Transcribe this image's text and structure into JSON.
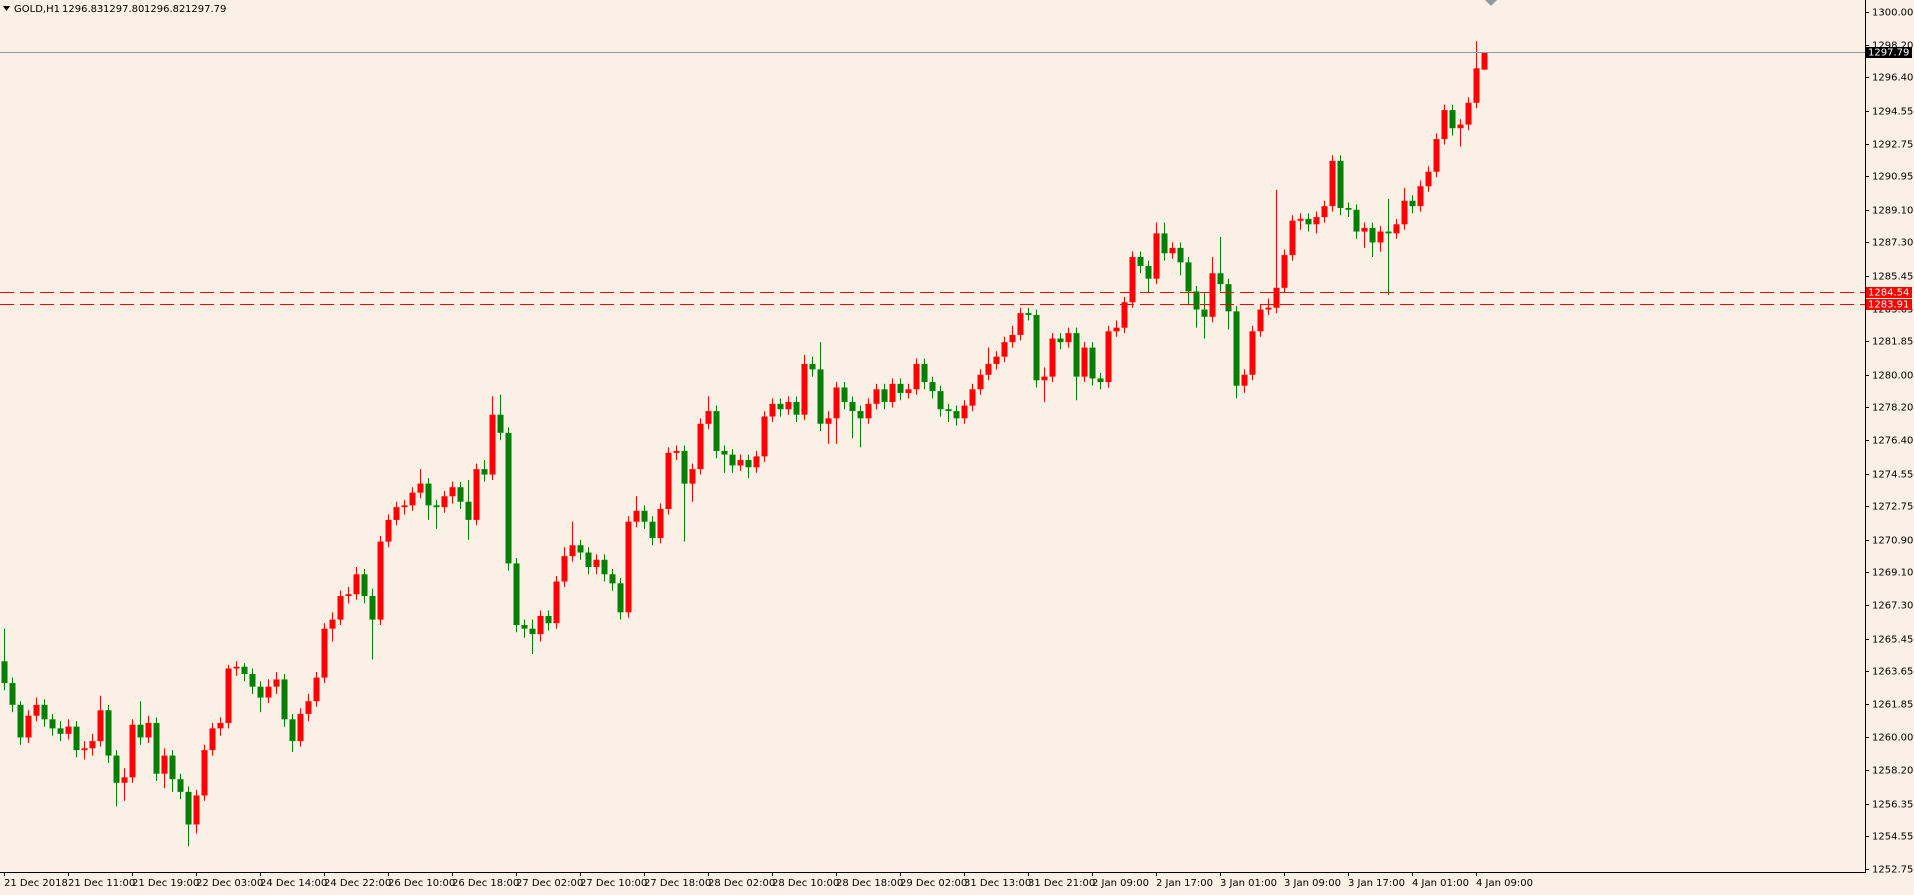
{
  "chart_data": {
    "type": "candlestick",
    "header": {
      "symbol": "GOLD,H1",
      "quote": [
        "1296.83",
        "1297.80",
        "1296.82",
        "1297.79"
      ]
    },
    "categories": [
      "21 Dec 2018",
      null,
      null,
      null,
      null,
      null,
      null,
      null,
      "21 Dec 11:00",
      null,
      null,
      null,
      null,
      null,
      null,
      null,
      "21 Dec 19:00",
      null,
      null,
      null,
      null,
      null,
      null,
      null,
      "22 Dec 03:00",
      null,
      null,
      null,
      null,
      null,
      null,
      null,
      "24 Dec 14:00",
      null,
      null,
      null,
      null,
      null,
      null,
      null,
      "24 Dec 22:00",
      null,
      null,
      null,
      null,
      null,
      null,
      null,
      "26 Dec 10:00",
      null,
      null,
      null,
      null,
      null,
      null,
      null,
      "26 Dec 18:00",
      null,
      null,
      null,
      null,
      null,
      null,
      null,
      "27 Dec 02:00",
      null,
      null,
      null,
      null,
      null,
      null,
      null,
      "27 Dec 10:00",
      null,
      null,
      null,
      null,
      null,
      null,
      null,
      "27 Dec 18:00",
      null,
      null,
      null,
      null,
      null,
      null,
      null,
      "28 Dec 02:00",
      null,
      null,
      null,
      null,
      null,
      null,
      null,
      "28 Dec 10:00",
      null,
      null,
      null,
      null,
      null,
      null,
      null,
      "28 Dec 18:00",
      null,
      null,
      null,
      null,
      null,
      null,
      null,
      "29 Dec 02:00",
      null,
      null,
      null,
      null,
      null,
      null,
      null,
      "31 Dec 13:00",
      null,
      null,
      null,
      null,
      null,
      null,
      null,
      "31 Dec 21:00",
      null,
      null,
      null,
      null,
      null,
      null,
      null,
      "2 Jan 09:00",
      null,
      null,
      null,
      null,
      null,
      null,
      null,
      "2 Jan 17:00",
      null,
      null,
      null,
      null,
      null,
      null,
      null,
      "3 Jan 01:00",
      null,
      null,
      null,
      null,
      null,
      null,
      null,
      "3 Jan 09:00",
      null,
      null,
      null,
      null,
      null,
      null,
      null,
      "3 Jan 17:00",
      null,
      null,
      null,
      null,
      null,
      null,
      null,
      "4 Jan 01:00",
      null,
      null,
      null,
      null,
      null,
      null,
      null,
      "4 Jan 09:00",
      null
    ],
    "open": [
      1264.2,
      1263.0,
      1261.8,
      1260.0,
      1261.2,
      1261.8,
      1261.0,
      1260.5,
      1260.2,
      1260.6,
      1259.3,
      1259.4,
      1259.8,
      1261.5,
      1259.0,
      1257.5,
      1257.8,
      1260.7,
      1260.0,
      1260.8,
      1258.0,
      1259.0,
      1257.7,
      1257.0,
      1255.2,
      1256.8,
      1259.3,
      1260.5,
      1260.8,
      1263.8,
      1263.9,
      1263.5,
      1262.8,
      1262.2,
      1262.8,
      1263.2,
      1261.0,
      1259.8,
      1261.3,
      1262.0,
      1263.3,
      1266.0,
      1266.5,
      1267.8,
      1267.9,
      1269.0,
      1267.8,
      1266.5,
      1270.8,
      1272.0,
      1272.7,
      1272.8,
      1273.5,
      1274.0,
      1272.8,
      1272.7,
      1273.3,
      1273.8,
      1273.0,
      1272.0,
      1274.8,
      1274.5,
      1277.8,
      1276.8,
      1269.6,
      1266.2,
      1266.0,
      1265.7,
      1266.7,
      1266.3,
      1268.6,
      1270.0,
      1270.6,
      1270.2,
      1269.4,
      1269.8,
      1269.0,
      1268.5,
      1266.9,
      1271.9,
      1272.5,
      1271.9,
      1271.0,
      1272.6,
      1275.7,
      1275.8,
      1274.0,
      1274.8,
      1277.3,
      1278.0,
      1275.8,
      1275.6,
      1275.0,
      1275.3,
      1274.9,
      1275.5,
      1277.7,
      1278.4,
      1278.1,
      1278.5,
      1277.8,
      1280.6,
      1280.3,
      1277.3,
      1277.6,
      1279.3,
      1278.5,
      1278.0,
      1277.6,
      1278.4,
      1279.2,
      1278.5,
      1279.5,
      1279.0,
      1279.2,
      1280.6,
      1279.6,
      1279.1,
      1278.1,
      1278.0,
      1277.6,
      1278.3,
      1279.2,
      1280.0,
      1280.6,
      1281.0,
      1281.8,
      1282.2,
      1283.4,
      1283.3,
      1279.7,
      1279.9,
      1282.0,
      1281.8,
      1282.3,
      1279.9,
      1281.5,
      1279.8,
      1279.6,
      1282.4,
      1282.6,
      1284.0,
      1286.5,
      1286.0,
      1285.3,
      1287.8,
      1286.7,
      1287.0,
      1286.2,
      1284.6,
      1283.6,
      1283.2,
      1285.6,
      1285.0,
      1283.5,
      1279.4,
      1280.0,
      1282.4,
      1283.6,
      1283.7,
      1284.8,
      1286.6,
      1288.5,
      1288.6,
      1288.3,
      1288.7,
      1289.3,
      1291.8,
      1289.2,
      1289.1,
      1287.9,
      1288.1,
      1287.3,
      1287.9,
      1287.8,
      1288.3,
      1289.6,
      1289.3,
      1290.4,
      1291.2,
      1293.0,
      1294.6,
      1293.6,
      1293.8,
      1295.0,
      1296.83
    ],
    "high": [
      1266.0,
      1263.3,
      1262.0,
      1261.5,
      1262.2,
      1262.1,
      1261.3,
      1260.9,
      1261.0,
      1260.9,
      1259.8,
      1260.2,
      1262.3,
      1261.8,
      1259.3,
      1258.3,
      1261.0,
      1262.0,
      1261.2,
      1261.1,
      1259.4,
      1259.3,
      1258.0,
      1257.3,
      1257.1,
      1259.6,
      1260.8,
      1261.1,
      1264.0,
      1264.2,
      1264.1,
      1263.8,
      1263.1,
      1263.2,
      1263.6,
      1263.5,
      1261.3,
      1261.6,
      1262.4,
      1263.6,
      1266.3,
      1266.9,
      1268.1,
      1268.3,
      1269.4,
      1269.3,
      1268.2,
      1271.1,
      1272.3,
      1273.0,
      1273.1,
      1273.8,
      1274.8,
      1274.3,
      1273.1,
      1273.6,
      1274.1,
      1274.1,
      1274.2,
      1275.1,
      1275.3,
      1278.8,
      1278.9,
      1277.1,
      1269.9,
      1266.5,
      1266.5,
      1267.0,
      1267.0,
      1268.9,
      1270.5,
      1271.9,
      1270.9,
      1270.5,
      1270.1,
      1270.1,
      1269.3,
      1268.8,
      1272.2,
      1273.3,
      1272.8,
      1272.2,
      1272.9,
      1276.0,
      1276.1,
      1276.1,
      1275.1,
      1277.6,
      1278.8,
      1278.3,
      1276.1,
      1275.9,
      1275.6,
      1275.6,
      1275.8,
      1278.0,
      1278.7,
      1278.7,
      1278.8,
      1278.8,
      1281.1,
      1281.0,
      1281.8,
      1278.0,
      1279.6,
      1279.6,
      1278.8,
      1278.3,
      1278.7,
      1279.5,
      1279.5,
      1279.8,
      1279.8,
      1279.5,
      1280.9,
      1280.9,
      1279.9,
      1279.4,
      1278.4,
      1278.3,
      1278.6,
      1279.5,
      1280.3,
      1281.5,
      1281.3,
      1282.1,
      1282.7,
      1283.7,
      1283.7,
      1283.6,
      1280.4,
      1282.3,
      1282.3,
      1282.6,
      1282.6,
      1281.8,
      1281.8,
      1280.1,
      1282.7,
      1283.0,
      1284.3,
      1286.8,
      1286.8,
      1286.3,
      1288.4,
      1288.4,
      1287.3,
      1287.3,
      1286.5,
      1284.9,
      1284.5,
      1286.5,
      1287.6,
      1285.3,
      1283.8,
      1280.3,
      1282.7,
      1283.9,
      1284.2,
      1290.2,
      1286.9,
      1288.8,
      1288.9,
      1288.9,
      1289.0,
      1289.6,
      1292.1,
      1292.1,
      1289.5,
      1289.4,
      1288.4,
      1288.4,
      1288.2,
      1289.7,
      1288.6,
      1290.3,
      1289.9,
      1290.7,
      1291.5,
      1293.3,
      1294.9,
      1294.9,
      1294.1,
      1295.3,
      1298.4,
      1297.8
    ],
    "low": [
      1262.6,
      1261.4,
      1259.6,
      1259.7,
      1260.9,
      1260.6,
      1260.1,
      1259.8,
      1259.9,
      1258.9,
      1258.8,
      1259.0,
      1259.5,
      1258.6,
      1256.2,
      1256.5,
      1257.5,
      1259.6,
      1259.7,
      1257.6,
      1257.2,
      1257.0,
      1256.6,
      1254.0,
      1254.7,
      1256.5,
      1259.0,
      1260.1,
      1260.5,
      1263.4,
      1263.1,
      1262.4,
      1261.4,
      1261.9,
      1262.4,
      1260.6,
      1259.2,
      1259.5,
      1260.9,
      1261.7,
      1263.0,
      1265.3,
      1266.2,
      1267.4,
      1267.6,
      1267.4,
      1264.3,
      1266.2,
      1270.5,
      1271.7,
      1272.3,
      1272.5,
      1273.2,
      1272.0,
      1271.5,
      1272.4,
      1272.9,
      1272.6,
      1270.9,
      1271.7,
      1274.1,
      1274.2,
      1276.4,
      1269.2,
      1265.8,
      1265.5,
      1264.6,
      1265.3,
      1265.9,
      1266.0,
      1268.3,
      1269.7,
      1269.8,
      1269.0,
      1269.0,
      1268.6,
      1268.1,
      1266.5,
      1266.6,
      1271.6,
      1271.5,
      1270.6,
      1270.7,
      1272.3,
      1275.3,
      1270.8,
      1273.0,
      1274.5,
      1277.0,
      1275.4,
      1274.6,
      1274.6,
      1274.7,
      1274.3,
      1274.6,
      1275.2,
      1277.4,
      1277.7,
      1277.8,
      1277.4,
      1277.5,
      1279.9,
      1276.9,
      1276.2,
      1276.2,
      1278.1,
      1276.5,
      1276.0,
      1277.3,
      1278.1,
      1278.1,
      1278.2,
      1278.6,
      1278.7,
      1278.9,
      1279.2,
      1278.7,
      1277.7,
      1277.4,
      1277.2,
      1277.3,
      1278.0,
      1278.9,
      1279.7,
      1280.3,
      1280.7,
      1281.5,
      1281.9,
      1283.0,
      1279.3,
      1278.5,
      1279.6,
      1281.4,
      1281.5,
      1278.6,
      1279.6,
      1279.4,
      1279.2,
      1279.3,
      1282.1,
      1282.3,
      1283.7,
      1285.6,
      1284.5,
      1285.0,
      1286.3,
      1286.4,
      1285.5,
      1283.9,
      1282.6,
      1282.0,
      1282.9,
      1284.6,
      1282.5,
      1278.7,
      1279.0,
      1279.7,
      1282.1,
      1283.3,
      1283.4,
      1284.5,
      1286.3,
      1288.0,
      1287.9,
      1287.8,
      1288.4,
      1289.0,
      1288.8,
      1288.7,
      1287.5,
      1287.0,
      1286.5,
      1286.8,
      1284.4,
      1287.5,
      1288.0,
      1288.9,
      1289.0,
      1290.1,
      1290.9,
      1292.7,
      1293.2,
      1292.6,
      1293.5,
      1294.7,
      1296.82
    ],
    "close": [
      1263.0,
      1261.8,
      1260.0,
      1261.2,
      1261.8,
      1261.0,
      1260.5,
      1260.2,
      1260.6,
      1259.3,
      1259.4,
      1259.8,
      1261.5,
      1259.0,
      1257.5,
      1257.8,
      1260.7,
      1260.0,
      1260.8,
      1258.0,
      1259.0,
      1257.7,
      1257.0,
      1255.2,
      1256.8,
      1259.3,
      1260.5,
      1260.8,
      1263.8,
      1263.9,
      1263.5,
      1262.8,
      1262.2,
      1262.8,
      1263.2,
      1261.0,
      1259.8,
      1261.3,
      1262.0,
      1263.3,
      1266.0,
      1266.5,
      1267.8,
      1267.9,
      1269.0,
      1267.8,
      1266.5,
      1270.8,
      1272.0,
      1272.7,
      1272.8,
      1273.5,
      1274.0,
      1272.8,
      1272.7,
      1273.3,
      1273.8,
      1273.0,
      1272.0,
      1274.8,
      1274.5,
      1277.8,
      1276.8,
      1269.6,
      1266.2,
      1266.0,
      1265.7,
      1266.7,
      1266.3,
      1268.6,
      1270.0,
      1270.6,
      1270.2,
      1269.4,
      1269.8,
      1269.0,
      1268.5,
      1266.9,
      1271.9,
      1272.5,
      1271.9,
      1271.0,
      1272.6,
      1275.7,
      1275.8,
      1274.0,
      1274.8,
      1277.3,
      1278.0,
      1275.8,
      1275.6,
      1275.0,
      1275.3,
      1274.9,
      1275.5,
      1277.7,
      1278.4,
      1278.1,
      1278.5,
      1277.8,
      1280.6,
      1280.3,
      1277.3,
      1277.6,
      1279.3,
      1278.5,
      1278.0,
      1277.6,
      1278.4,
      1279.2,
      1278.5,
      1279.5,
      1279.0,
      1279.2,
      1280.6,
      1279.6,
      1279.1,
      1278.1,
      1278.0,
      1277.6,
      1278.3,
      1279.2,
      1280.0,
      1280.6,
      1281.0,
      1281.8,
      1282.2,
      1283.4,
      1283.3,
      1279.7,
      1279.9,
      1282.0,
      1281.8,
      1282.3,
      1279.9,
      1281.5,
      1279.8,
      1279.6,
      1282.4,
      1282.6,
      1284.0,
      1286.5,
      1286.0,
      1285.3,
      1287.8,
      1286.7,
      1287.0,
      1286.2,
      1284.6,
      1283.6,
      1283.2,
      1285.6,
      1285.0,
      1283.5,
      1279.4,
      1280.0,
      1282.4,
      1283.6,
      1283.7,
      1284.8,
      1286.6,
      1288.5,
      1288.6,
      1288.3,
      1288.7,
      1289.3,
      1291.8,
      1289.2,
      1289.1,
      1287.9,
      1288.1,
      1287.3,
      1287.9,
      1287.8,
      1288.3,
      1289.6,
      1289.3,
      1290.4,
      1291.2,
      1293.0,
      1294.6,
      1293.6,
      1293.8,
      1295.0,
      1296.9,
      1297.79
    ],
    "up_color": "#ff0000",
    "down_color": "#008000",
    "ylim": [
      1252.58,
      1300.67
    ],
    "yticks": [
      {
        "value": 1300,
        "label": "1300.00"
      },
      {
        "value": 1298.2,
        "label": "1298.20"
      },
      {
        "value": 1296.4,
        "label": "1296.40"
      },
      1294.55,
      1292.75,
      1290.95,
      {
        "value": 1289.1,
        "label": "1289.10"
      },
      {
        "value": 1287.3,
        "label": "1287.30"
      },
      1285.45,
      1283.65,
      1281.85,
      {
        "value": 1280,
        "label": "1280.00"
      },
      {
        "value": 1278.2,
        "label": "1278.20"
      },
      {
        "value": 1276.4,
        "label": "1276.40"
      },
      1274.55,
      1272.75,
      {
        "value": 1270.9,
        "label": "1270.90"
      },
      {
        "value": 1269.1,
        "label": "1269.10"
      },
      {
        "value": 1267.3,
        "label": "1267.30"
      },
      1265.45,
      1263.65,
      1261.85,
      {
        "value": 1260,
        "label": "1260.00"
      },
      {
        "value": 1258.2,
        "label": "1258.20"
      },
      1256.35,
      1254.55,
      1252.75
    ],
    "levels": [
      {
        "value": 1284.54,
        "color": "#ff0000"
      },
      {
        "value": 1283.91,
        "color": "#ff0000"
      }
    ],
    "bid": {
      "value": 1297.79,
      "color": "#8c9aa8"
    }
  }
}
